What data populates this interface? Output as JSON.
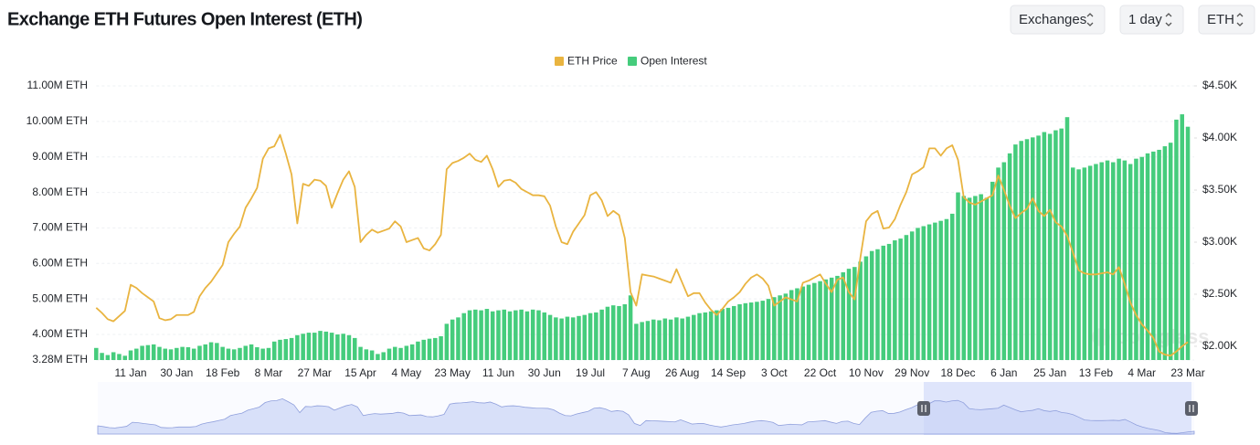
{
  "controls": [
    "Exchanges",
    "1 day",
    "ETH"
  ],
  "watermark": "coinglass",
  "chart_data": {
    "type": "combo",
    "title": "Exchange ETH Futures Open Interest (ETH)",
    "grid": true,
    "legend": "top",
    "categories": [
      null,
      null,
      null,
      null,
      null,
      null,
      "11 Jan",
      null,
      null,
      null,
      null,
      null,
      null,
      null,
      "30 Jan",
      null,
      null,
      null,
      null,
      null,
      null,
      null,
      "18 Feb",
      null,
      null,
      null,
      null,
      null,
      null,
      null,
      "8 Mar",
      null,
      null,
      null,
      null,
      null,
      null,
      null,
      "27 Mar",
      null,
      null,
      null,
      null,
      null,
      null,
      null,
      "15 Apr",
      null,
      null,
      null,
      null,
      null,
      null,
      null,
      "4 May",
      null,
      null,
      null,
      null,
      null,
      null,
      null,
      "23 May",
      null,
      null,
      null,
      null,
      null,
      null,
      null,
      "11 Jun",
      null,
      null,
      null,
      null,
      null,
      null,
      null,
      "30 Jun",
      null,
      null,
      null,
      null,
      null,
      null,
      null,
      "19 Jul",
      null,
      null,
      null,
      null,
      null,
      null,
      null,
      "7 Aug",
      null,
      null,
      null,
      null,
      null,
      null,
      null,
      "26 Aug",
      null,
      null,
      null,
      null,
      null,
      null,
      null,
      "14 Sep",
      null,
      null,
      null,
      null,
      null,
      null,
      null,
      "3 Oct",
      null,
      null,
      null,
      null,
      null,
      null,
      null,
      "22 Oct",
      null,
      null,
      null,
      null,
      null,
      null,
      null,
      "10 Nov",
      null,
      null,
      null,
      null,
      null,
      null,
      null,
      "29 Nov",
      null,
      null,
      null,
      null,
      null,
      null,
      null,
      "18 Dec",
      null,
      null,
      null,
      null,
      null,
      null,
      null,
      "6 Jan",
      null,
      null,
      null,
      null,
      null,
      null,
      null,
      "25 Jan",
      null,
      null,
      null,
      null,
      null,
      null,
      null,
      "13 Feb",
      null,
      null,
      null,
      null,
      null,
      null,
      null,
      "4 Mar",
      null,
      null,
      null,
      null,
      null,
      null,
      null,
      "23 Mar"
    ],
    "series": [
      {
        "name": "ETH Price",
        "type": "line",
        "axis": "y2",
        "color": "#e9b440",
        "values": [
          2370,
          2320,
          2260,
          2240,
          2290,
          2340,
          2590,
          2560,
          2510,
          2470,
          2430,
          2270,
          2250,
          2260,
          2300,
          2300,
          2300,
          2330,
          2480,
          2560,
          2620,
          2700,
          2780,
          3000,
          3080,
          3150,
          3330,
          3420,
          3520,
          3800,
          3900,
          3920,
          4030,
          3850,
          3650,
          3180,
          3560,
          3540,
          3600,
          3590,
          3540,
          3330,
          3470,
          3600,
          3680,
          3530,
          3000,
          3070,
          3120,
          3090,
          3110,
          3130,
          3200,
          3150,
          3000,
          3020,
          3040,
          2940,
          2920,
          2980,
          3070,
          3700,
          3760,
          3780,
          3810,
          3850,
          3790,
          3770,
          3830,
          3700,
          3530,
          3590,
          3600,
          3570,
          3510,
          3480,
          3450,
          3450,
          3440,
          3350,
          3150,
          3000,
          2980,
          3100,
          3180,
          3260,
          3450,
          3480,
          3400,
          3250,
          3300,
          3260,
          3040,
          2520,
          2390,
          2690,
          2680,
          2670,
          2650,
          2630,
          2610,
          2740,
          2610,
          2480,
          2510,
          2510,
          2420,
          2350,
          2300,
          2360,
          2430,
          2470,
          2520,
          2600,
          2660,
          2690,
          2650,
          2580,
          2390,
          2430,
          2470,
          2450,
          2430,
          2610,
          2630,
          2660,
          2690,
          2600,
          2520,
          2640,
          2660,
          2520,
          2450,
          2850,
          3200,
          3270,
          3300,
          3130,
          3140,
          3220,
          3360,
          3480,
          3650,
          3680,
          3720,
          3900,
          3900,
          3830,
          3900,
          3930,
          3790,
          3430,
          3380,
          3360,
          3390,
          3420,
          3450,
          3640,
          3500,
          3350,
          3230,
          3280,
          3320,
          3420,
          3300,
          3250,
          3310,
          3190,
          3150,
          3060,
          2900,
          2730,
          2700,
          2690,
          2690,
          2700,
          2710,
          2690,
          2760,
          2600,
          2420,
          2300,
          2210,
          2150,
          2080,
          1950,
          1920,
          1910,
          1950,
          2000,
          2040
        ]
      },
      {
        "name": "Open Interest",
        "type": "bar",
        "color": "#45cc7c",
        "values": [
          3620000,
          3480000,
          3420000,
          3500000,
          3450000,
          3400000,
          3550000,
          3600000,
          3680000,
          3700000,
          3720000,
          3650000,
          3600000,
          3580000,
          3620000,
          3650000,
          3640000,
          3600000,
          3680000,
          3720000,
          3780000,
          3760000,
          3650000,
          3600000,
          3580000,
          3620000,
          3680000,
          3720000,
          3640000,
          3600000,
          3620000,
          3800000,
          3850000,
          3870000,
          3900000,
          3980000,
          4020000,
          4050000,
          4050000,
          4100000,
          4080000,
          4050000,
          4000000,
          4020000,
          3980000,
          3900000,
          3650000,
          3580000,
          3550000,
          3450000,
          3500000,
          3600000,
          3650000,
          3620000,
          3680000,
          3720000,
          3800000,
          3850000,
          3880000,
          3900000,
          3950000,
          4300000,
          4420000,
          4480000,
          4600000,
          4680000,
          4700000,
          4680000,
          4720000,
          4650000,
          4680000,
          4700000,
          4650000,
          4680000,
          4700000,
          4650000,
          4700000,
          4680000,
          4620000,
          4550000,
          4480000,
          4450000,
          4500000,
          4480000,
          4520000,
          4550000,
          4600000,
          4620000,
          4700000,
          4780000,
          4820000,
          4800000,
          4850000,
          5100000,
          4300000,
          4350000,
          4380000,
          4420000,
          4400000,
          4450000,
          4420000,
          4480000,
          4450000,
          4500000,
          4550000,
          4600000,
          4620000,
          4650000,
          4680000,
          4720000,
          4750000,
          4800000,
          4850000,
          4880000,
          4900000,
          4920000,
          4950000,
          5000000,
          5050000,
          5100000,
          5150000,
          5250000,
          5300000,
          5350000,
          5400000,
          5450000,
          5500000,
          5550000,
          5600000,
          5650000,
          5750000,
          5850000,
          5900000,
          6050000,
          6200000,
          6350000,
          6400000,
          6500000,
          6550000,
          6650000,
          6700000,
          6800000,
          6900000,
          7000000,
          7050000,
          7100000,
          7150000,
          7200000,
          7250000,
          7400000,
          8000000,
          7900000,
          7850000,
          7900000,
          7950000,
          7850000,
          8300000,
          8700000,
          8850000,
          9100000,
          9350000,
          9450000,
          9500000,
          9550000,
          9600000,
          9700000,
          9650000,
          9750000,
          9800000,
          10120000,
          8700000,
          8650000,
          8700000,
          8750000,
          8800000,
          8850000,
          8900000,
          8850000,
          8950000,
          8900000,
          8800000,
          8950000,
          9000000,
          9100000,
          9150000,
          9200000,
          9300000,
          9400000,
          10050000,
          10200000,
          9850000
        ]
      }
    ],
    "ylim": [
      3280000,
      11000000
    ],
    "yticks": [
      {
        "value": 3280000,
        "label": "3.28M ETH"
      },
      {
        "value": 4000000,
        "label": "4.00M ETH"
      },
      {
        "value": 5000000,
        "label": "5.00M ETH"
      },
      {
        "value": 6000000,
        "label": "6.00M ETH"
      },
      {
        "value": 7000000,
        "label": "7.00M ETH"
      },
      {
        "value": 8000000,
        "label": "8.00M ETH"
      },
      {
        "value": 9000000,
        "label": "9.00M ETH"
      },
      {
        "value": 10000000,
        "label": "10.00M ETH"
      },
      {
        "value": 11000000,
        "label": "11.00M ETH"
      }
    ],
    "y2lim": [
      1868,
      4500
    ],
    "y2ticks": [
      {
        "value": 2000,
        "label": "$2.00K"
      },
      {
        "value": 2500,
        "label": "$2.50K"
      },
      {
        "value": 3000,
        "label": "$3.00K"
      },
      {
        "value": 3500,
        "label": "$3.50K"
      },
      {
        "value": 4000,
        "label": "$4.00K"
      },
      {
        "value": 4500,
        "label": "$4.50K"
      }
    ]
  }
}
